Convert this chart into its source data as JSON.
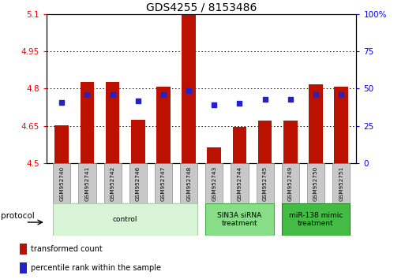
{
  "title": "GDS4255 / 8153486",
  "samples": [
    "GSM952740",
    "GSM952741",
    "GSM952742",
    "GSM952746",
    "GSM952747",
    "GSM952748",
    "GSM952743",
    "GSM952744",
    "GSM952745",
    "GSM952749",
    "GSM952750",
    "GSM952751"
  ],
  "bar_values": [
    4.652,
    4.828,
    4.828,
    4.675,
    4.808,
    5.1,
    4.565,
    4.645,
    4.672,
    4.672,
    4.818,
    4.808
  ],
  "blue_values": [
    4.745,
    4.775,
    4.775,
    4.752,
    4.775,
    4.793,
    4.735,
    4.74,
    4.758,
    4.758,
    4.775,
    4.775
  ],
  "y_min": 4.5,
  "y_max": 5.1,
  "y_ticks": [
    4.5,
    4.65,
    4.8,
    4.95,
    5.1
  ],
  "y_tick_labels": [
    "4.5",
    "4.65",
    "4.8",
    "4.95",
    "5.1"
  ],
  "right_y_ticks": [
    0,
    25,
    50,
    75,
    100
  ],
  "right_y_tick_labels": [
    "0",
    "25",
    "50",
    "75",
    "100%"
  ],
  "bar_color": "#bb1100",
  "blue_color": "#2222cc",
  "groups": [
    {
      "label": "control",
      "start": 0,
      "end": 5,
      "color": "#d8f5d8",
      "edge_color": "#aaccaa"
    },
    {
      "label": "SIN3A siRNA\ntreatment",
      "start": 6,
      "end": 8,
      "color": "#88dd88",
      "edge_color": "#44aa44"
    },
    {
      "label": "miR-138 mimic\ntreatment",
      "start": 9,
      "end": 11,
      "color": "#44bb44",
      "edge_color": "#228822"
    }
  ],
  "protocol_label": "protocol",
  "legend_items": [
    {
      "label": "transformed count",
      "color": "#bb1100"
    },
    {
      "label": "percentile rank within the sample",
      "color": "#2222cc"
    }
  ],
  "title_fontsize": 10,
  "tick_fontsize": 7.5,
  "bar_width": 0.55,
  "label_box_color": "#c8c8c8",
  "label_box_edge": "#888888"
}
